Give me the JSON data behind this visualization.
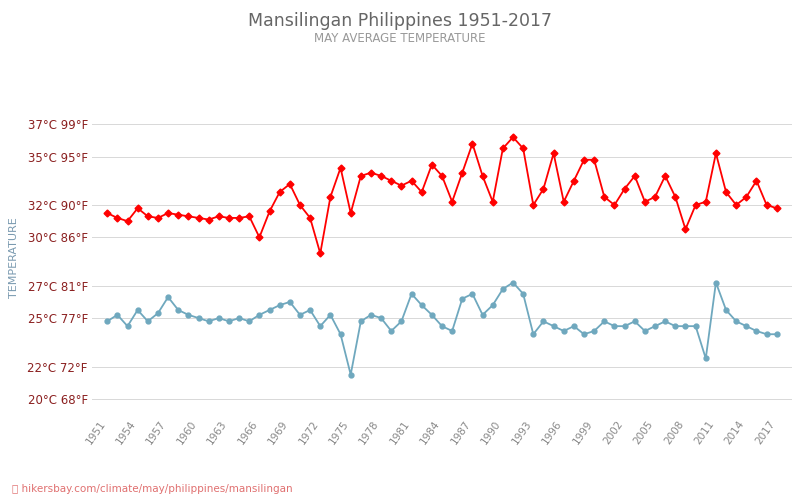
{
  "title": "Mansilingan Philippines 1951-2017",
  "subtitle": "MAY AVERAGE TEMPERATURE",
  "ylabel": "TEMPERATURE",
  "background_color": "#ffffff",
  "plot_bg_color": "#ffffff",
  "grid_color": "#d8d8d8",
  "title_color": "#666666",
  "subtitle_color": "#999999",
  "ylabel_color": "#7a9ab0",
  "tick_color": "#888888",
  "ytick_color": "#8b2020",
  "years": [
    1951,
    1952,
    1953,
    1954,
    1955,
    1956,
    1957,
    1958,
    1959,
    1960,
    1961,
    1962,
    1963,
    1964,
    1965,
    1966,
    1967,
    1968,
    1969,
    1970,
    1971,
    1972,
    1973,
    1974,
    1975,
    1976,
    1977,
    1978,
    1979,
    1980,
    1981,
    1982,
    1983,
    1984,
    1985,
    1986,
    1987,
    1988,
    1989,
    1990,
    1991,
    1992,
    1993,
    1994,
    1995,
    1996,
    1997,
    1998,
    1999,
    2000,
    2001,
    2002,
    2003,
    2004,
    2005,
    2006,
    2007,
    2008,
    2009,
    2010,
    2011,
    2012,
    2013,
    2014,
    2015,
    2016,
    2017
  ],
  "day_temps": [
    31.5,
    31.2,
    31.0,
    31.8,
    31.3,
    31.2,
    31.5,
    31.4,
    31.3,
    31.2,
    31.1,
    31.3,
    31.2,
    31.2,
    31.3,
    30.0,
    31.6,
    32.8,
    33.3,
    32.0,
    31.2,
    29.0,
    32.5,
    34.3,
    31.5,
    33.8,
    34.0,
    33.8,
    33.5,
    33.2,
    33.5,
    32.8,
    34.5,
    33.8,
    32.2,
    34.0,
    35.8,
    33.8,
    32.2,
    35.5,
    36.2,
    35.5,
    32.0,
    33.0,
    35.2,
    32.2,
    33.5,
    34.8,
    34.8,
    32.5,
    32.0,
    33.0,
    33.8,
    32.2,
    32.5,
    33.8,
    32.5,
    30.5,
    32.0,
    32.2,
    35.2,
    32.8,
    32.0,
    32.5,
    33.5,
    32.0,
    31.8
  ],
  "night_temps": [
    24.8,
    25.2,
    24.5,
    25.5,
    24.8,
    25.3,
    26.3,
    25.5,
    25.2,
    25.0,
    24.8,
    25.0,
    24.8,
    25.0,
    24.8,
    25.2,
    25.5,
    25.8,
    26.0,
    25.2,
    25.5,
    24.5,
    25.2,
    24.0,
    21.5,
    24.8,
    25.2,
    25.0,
    24.2,
    24.8,
    26.5,
    25.8,
    25.2,
    24.5,
    24.2,
    26.2,
    26.5,
    25.2,
    25.8,
    26.8,
    27.2,
    26.5,
    24.0,
    24.8,
    24.5,
    24.2,
    24.5,
    24.0,
    24.2,
    24.8,
    24.5,
    24.5,
    24.8,
    24.2,
    24.5,
    24.8,
    24.5,
    24.5,
    24.5,
    22.5,
    27.2,
    25.5,
    24.8,
    24.5,
    24.2,
    24.0,
    24.0
  ],
  "day_color": "#ff0000",
  "night_color": "#6fa8be",
  "marker_size": 3.5,
  "line_width": 1.3,
  "yticks_c": [
    20,
    22,
    25,
    27,
    30,
    32,
    35,
    37
  ],
  "yticks_f": [
    68,
    72,
    77,
    81,
    86,
    90,
    95,
    99
  ],
  "xtick_years": [
    1951,
    1954,
    1957,
    1960,
    1963,
    1966,
    1969,
    1972,
    1975,
    1978,
    1981,
    1984,
    1987,
    1990,
    1993,
    1996,
    1999,
    2002,
    2005,
    2008,
    2011,
    2014,
    2017
  ],
  "ymin": 19,
  "ymax": 38.5,
  "footer_text": "hikersbay.com/climate/may/philippines/mansilingan",
  "footer_color": "#e07070"
}
